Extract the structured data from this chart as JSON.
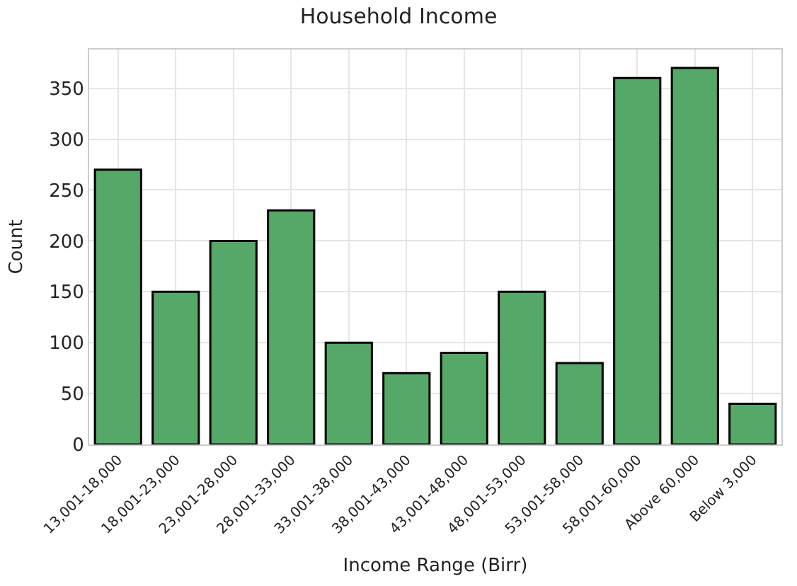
{
  "chart_data": {
    "type": "bar",
    "title": "Household Income",
    "xlabel": "Income Range (Birr)",
    "ylabel": "Count",
    "categories": [
      "13,001-18,000",
      "18,001-23,000",
      "23,001-28,000",
      "28,001-33,000",
      "33,001-38,000",
      "38,001-43,000",
      "43,001-48,000",
      "48,001-53,000",
      "53,001-58,000",
      "58,001-60,000",
      "Above 60,000",
      "Below 3,000"
    ],
    "values": [
      270,
      150,
      200,
      230,
      100,
      70,
      90,
      150,
      80,
      360,
      370,
      40
    ],
    "color": "#55a868",
    "ylim": [
      0,
      388
    ],
    "yticks": [
      0,
      50,
      100,
      150,
      200,
      250,
      300,
      350
    ],
    "grid": true
  }
}
